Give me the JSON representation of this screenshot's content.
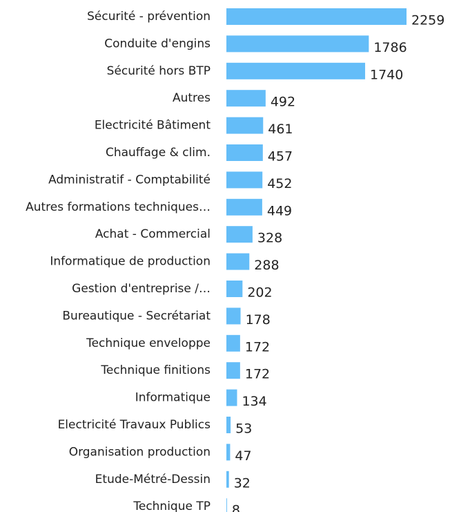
{
  "chart_data": {
    "type": "barh",
    "color": "#64bdf8",
    "categories": [
      "Sécurité - prévention",
      "Conduite d'engins",
      "Sécurité hors BTP",
      "Autres",
      "Electricité Bâtiment",
      "Chauffage & clim.",
      "Administratif - Comptabilité",
      "Autres formations techniques…",
      "Achat - Commercial",
      "Informatique de production",
      "Gestion d'entreprise /…",
      "Bureautique - Secrétariat",
      "Technique enveloppe",
      "Technique finitions",
      "Informatique",
      "Electricité Travaux Publics",
      "Organisation production",
      "Etude-Métré-Dessin",
      "Technique TP"
    ],
    "values": [
      2259,
      1786,
      1740,
      492,
      461,
      457,
      452,
      449,
      328,
      288,
      202,
      178,
      172,
      172,
      134,
      53,
      47,
      32,
      8
    ]
  }
}
